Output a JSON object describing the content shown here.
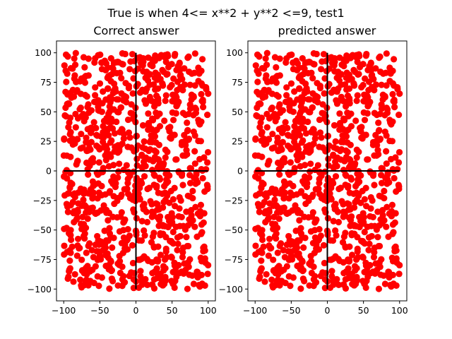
{
  "figure": {
    "suptitle": "True is when 4<= x**2 + y**2 <=9, test1"
  },
  "colors": {
    "points": "#ff0000",
    "axes_lines": "#000000",
    "frame": "#000000",
    "background": "#ffffff"
  },
  "chart_data": [
    {
      "type": "scatter",
      "title": "Correct answer",
      "xlim": [
        -110,
        110
      ],
      "ylim": [
        -110,
        110
      ],
      "xticks": [
        -100,
        -50,
        0,
        50,
        100
      ],
      "yticks": [
        -100,
        -75,
        -50,
        -25,
        0,
        25,
        50,
        75,
        100
      ],
      "xtick_labels": [
        "−100",
        "−50",
        "0",
        "50",
        "100"
      ],
      "ytick_labels": [
        "−100",
        "−75",
        "−50",
        "−25",
        "0",
        "25",
        "50",
        "75",
        "100"
      ],
      "grid": false,
      "point_color": "#ff0000",
      "reference_lines": {
        "horizontal_y": 0,
        "vertical_x": 0,
        "extent": [
          -100,
          100
        ]
      },
      "series": [
        {
          "count": 1000,
          "distribution": "uniform",
          "x_range": [
            -100,
            100
          ],
          "y_range": [
            -100,
            100
          ],
          "seed": 1
        }
      ]
    },
    {
      "type": "scatter",
      "title": "predicted answer",
      "xlim": [
        -110,
        110
      ],
      "ylim": [
        -110,
        110
      ],
      "xticks": [
        -100,
        -50,
        0,
        50,
        100
      ],
      "yticks": [
        -100,
        -75,
        -50,
        -25,
        0,
        25,
        50,
        75,
        100
      ],
      "xtick_labels": [
        "−100",
        "−50",
        "0",
        "50",
        "100"
      ],
      "ytick_labels": [
        "−100",
        "−75",
        "−50",
        "−25",
        "0",
        "25",
        "50",
        "75",
        "100"
      ],
      "grid": false,
      "point_color": "#ff0000",
      "reference_lines": {
        "horizontal_y": 0,
        "vertical_x": 0,
        "extent": [
          -100,
          100
        ]
      },
      "series": [
        {
          "count": 1000,
          "distribution": "uniform",
          "x_range": [
            -100,
            100
          ],
          "y_range": [
            -100,
            100
          ],
          "seed": 1
        }
      ]
    }
  ]
}
